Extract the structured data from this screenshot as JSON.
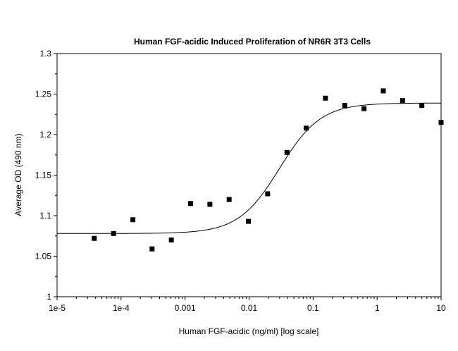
{
  "chart_data": {
    "type": "scatter",
    "title": "Human FGF-acidic Induced Proliferation of NR6R 3T3 Cells",
    "xlabel": "Human FGF-acidic (ng/ml) [log scale]",
    "ylabel": "Average OD (490 nm)",
    "x_scale": "log",
    "xlim": [
      1e-05,
      10
    ],
    "ylim": [
      1.0,
      1.3
    ],
    "x_tick_values": [
      1e-05,
      0.0001,
      0.001,
      0.01,
      0.1,
      1,
      10
    ],
    "x_tick_labels": [
      "1e-5",
      "1e-4",
      "0.001",
      "0.01",
      "0.1",
      "1",
      "10"
    ],
    "y_tick_values": [
      1.0,
      1.05,
      1.1,
      1.15,
      1.2,
      1.25,
      1.3
    ],
    "y_tick_labels": [
      "1",
      "1.05",
      "1.1",
      "1.15",
      "1.2",
      "1.25",
      "1.3"
    ],
    "grid": false,
    "series": [
      {
        "marker": "square",
        "color": "#000000",
        "points": [
          {
            "x": 3.81e-05,
            "y": 1.072
          },
          {
            "x": 7.63e-05,
            "y": 1.078
          },
          {
            "x": 0.000153,
            "y": 1.095
          },
          {
            "x": 0.000305,
            "y": 1.059
          },
          {
            "x": 0.00061,
            "y": 1.07
          },
          {
            "x": 0.00122,
            "y": 1.115
          },
          {
            "x": 0.00244,
            "y": 1.114
          },
          {
            "x": 0.00488,
            "y": 1.12
          },
          {
            "x": 0.00977,
            "y": 1.093
          },
          {
            "x": 0.0195,
            "y": 1.127
          },
          {
            "x": 0.0391,
            "y": 1.178
          },
          {
            "x": 0.0781,
            "y": 1.208
          },
          {
            "x": 0.156,
            "y": 1.245
          },
          {
            "x": 0.3125,
            "y": 1.236
          },
          {
            "x": 0.625,
            "y": 1.232
          },
          {
            "x": 1.25,
            "y": 1.254
          },
          {
            "x": 2.5,
            "y": 1.242
          },
          {
            "x": 5,
            "y": 1.236
          },
          {
            "x": 10,
            "y": 1.215
          }
        ]
      }
    ],
    "fit_curve": {
      "type": "four-parameter-logistic",
      "color": "#000000",
      "bottom": 1.078,
      "top": 1.239,
      "ec50": 0.03,
      "hill": 1.35
    }
  }
}
